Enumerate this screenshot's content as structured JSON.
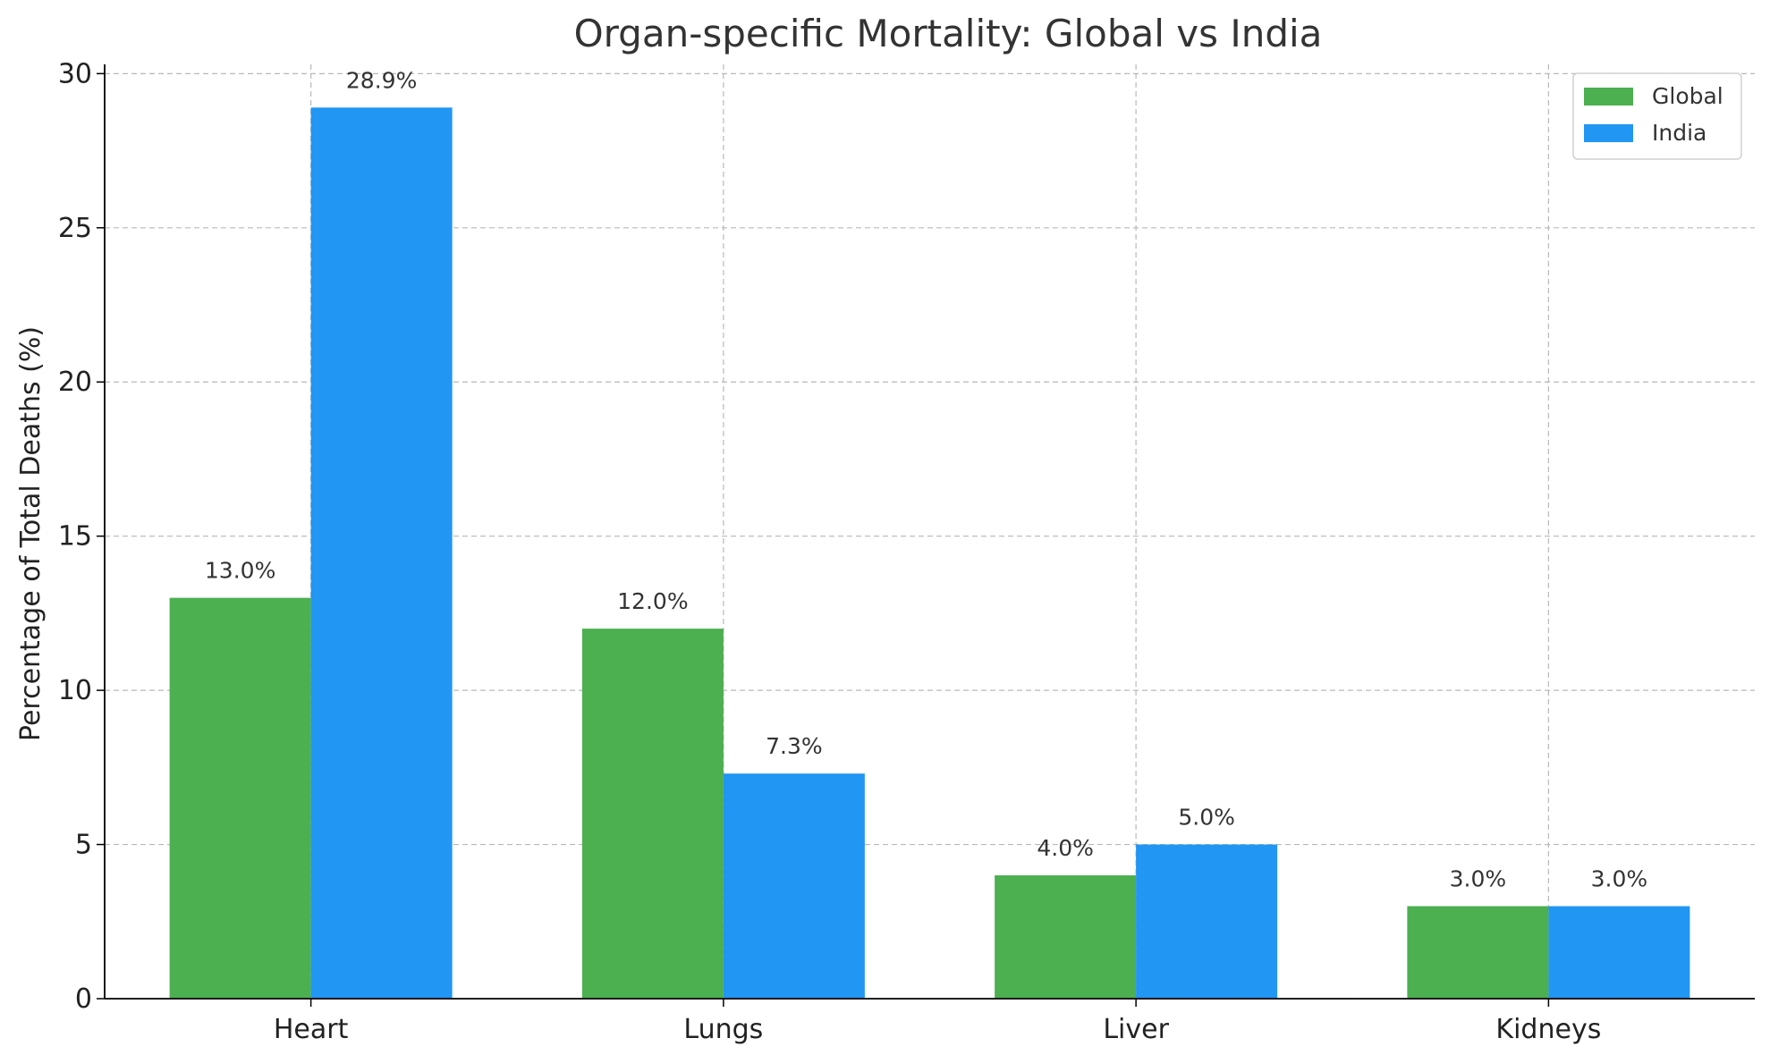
{
  "chart_data": {
    "type": "bar",
    "title": "Organ-specific Mortality: Global vs India",
    "xlabel": "",
    "ylabel": "Percentage of Total Deaths (%)",
    "categories": [
      "Heart",
      "Lungs",
      "Liver",
      "Kidneys"
    ],
    "series": [
      {
        "name": "Global",
        "values": [
          13.0,
          12.0,
          4.0,
          3.0
        ],
        "color": "#4caf50"
      },
      {
        "name": "India",
        "values": [
          28.9,
          7.3,
          5.0,
          3.0
        ],
        "color": "#2196f3"
      }
    ],
    "data_labels": [
      [
        "13.0%",
        "12.0%",
        "4.0%",
        "3.0%"
      ],
      [
        "28.9%",
        "7.3%",
        "5.0%",
        "3.0%"
      ]
    ],
    "ylim": [
      0,
      30.3
    ],
    "yticks": [
      0,
      5,
      10,
      15,
      20,
      25,
      30
    ],
    "ytick_labels": [
      "0",
      "5",
      "10",
      "15",
      "20",
      "25",
      "30"
    ],
    "grid": true,
    "legend_position": "top-right"
  }
}
